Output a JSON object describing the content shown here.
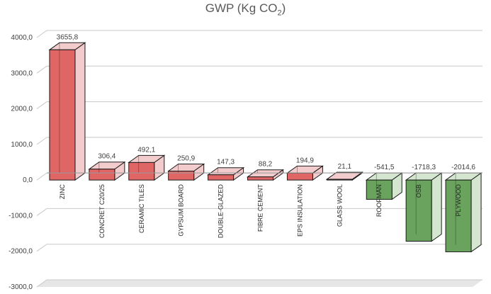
{
  "chart_data": {
    "type": "bar",
    "title": "GWP (Kg CO",
    "title_sub": "2",
    "title_close": ")",
    "categories": [
      "ZINC",
      "CONCRET C20/25",
      "CERAMIC TILES",
      "GYPSUM BOARD",
      "DOUBLE-GLAZED",
      "FIBRE CEMENT",
      "EPS INSULATION",
      "GLASS WOOL",
      "ROOFMAN",
      "OSB",
      "PLYWOOD"
    ],
    "values": [
      3655.8,
      306.4,
      492.1,
      250.9,
      147.3,
      88.2,
      194.9,
      21.1,
      -541.5,
      -1718.3,
      -2014.6
    ],
    "value_labels": [
      "3655,8",
      "306,4",
      "492,1",
      "250,9",
      "147,3",
      "88,2",
      "194,9",
      "21,1",
      "-541,5",
      "-1718,3",
      "-2014,6"
    ],
    "ylim": [
      -3000,
      4000
    ],
    "yticks": [
      4000,
      3000,
      2000,
      1000,
      0,
      -1000,
      -2000,
      -3000
    ],
    "ytick_labels": [
      "4000,0",
      "3000,0",
      "2000,0",
      "1000,0",
      "0,0",
      "-1000,0",
      "-2000,0",
      "-3000,0"
    ],
    "xlabel": "",
    "ylabel": "",
    "grid": true,
    "legend": "none",
    "colors": {
      "positive_front": "#e06666",
      "positive_side": "#f2cccc",
      "negative_front": "#6aa35d",
      "negative_side": "#d5e6d0",
      "edge": "#1a1a1a",
      "grid": "#c8c8c8",
      "floor": "#e6e6e6"
    }
  }
}
